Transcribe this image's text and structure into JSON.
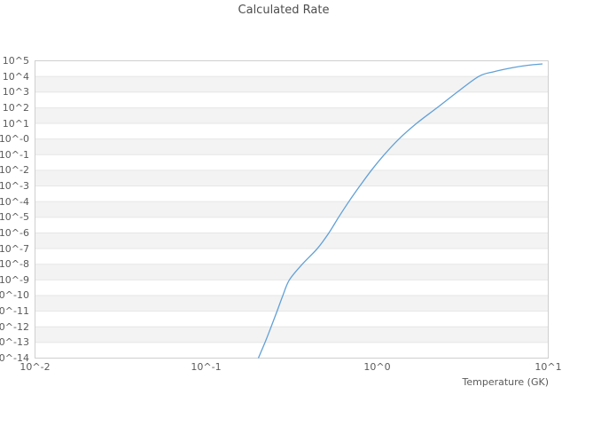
{
  "title": "Calculated Rate",
  "colors": {
    "line": "#61a0d7",
    "band": "#f3f3f3",
    "grid": "#e6e6e6",
    "border": "#cfcfcf",
    "text": "#5a5a5a"
  },
  "x_axis": {
    "label": "Temperature (GK)",
    "tick_labels": [
      "10^-2",
      "10^-1",
      "10^0",
      "10^1"
    ],
    "tick_log_values": [
      -2,
      -1,
      0,
      1
    ],
    "log_min": -2,
    "log_max": 1
  },
  "y_axis": {
    "tick_labels": [
      "10^5",
      "10^4",
      "10^3",
      "10^2",
      "10^1",
      "10^-0",
      "10^-1",
      "10^-2",
      "10^-3",
      "10^-4",
      "10^-5",
      "10^-6",
      "10^-7",
      "10^-8",
      "10^-9",
      "10^-10",
      "10^-11",
      "10^-12",
      "10^-13",
      "10^-14"
    ],
    "tick_log_values": [
      5,
      4,
      3,
      2,
      1,
      0,
      -1,
      -2,
      -3,
      -4,
      -5,
      -6,
      -7,
      -8,
      -9,
      -10,
      -11,
      -12,
      -13,
      -14
    ],
    "log_min": -14,
    "log_max": 5
  },
  "chart_data": {
    "type": "line",
    "title": "Calculated Rate",
    "xlabel": "Temperature (GK)",
    "ylabel": "",
    "x_scale": "log",
    "y_scale": "log",
    "xlim": [
      0.01,
      10
    ],
    "ylim": [
      1e-14,
      100000.0
    ],
    "grid": "horizontal-alternating-bands",
    "legend": "none",
    "series": [
      {
        "name": "calculated-rate",
        "color": "#61a0d7",
        "points": [
          [
            0.202,
            1e-14
          ],
          [
            0.221,
            1e-13
          ],
          [
            0.24,
            1e-12
          ],
          [
            0.26,
            1e-11
          ],
          [
            0.281,
            1e-10
          ],
          [
            0.307,
            1e-09
          ],
          [
            0.365,
            1e-08
          ],
          [
            0.447,
            1e-07
          ],
          [
            0.522,
            1e-06
          ],
          [
            0.595,
            1e-05
          ],
          [
            0.683,
            0.0001
          ],
          [
            0.792,
            0.001
          ],
          [
            0.925,
            0.01
          ],
          [
            1.1,
            0.1
          ],
          [
            1.34,
            1.0
          ],
          [
            1.7,
            10.0
          ],
          [
            2.24,
            100.0
          ],
          [
            2.94,
            1000.0
          ],
          [
            3.92,
            10000.0
          ],
          [
            4.8,
            20000.0
          ],
          [
            6.24,
            37000.0
          ],
          [
            7.65,
            52000.0
          ],
          [
            9.26,
            63000.0
          ]
        ]
      }
    ]
  }
}
